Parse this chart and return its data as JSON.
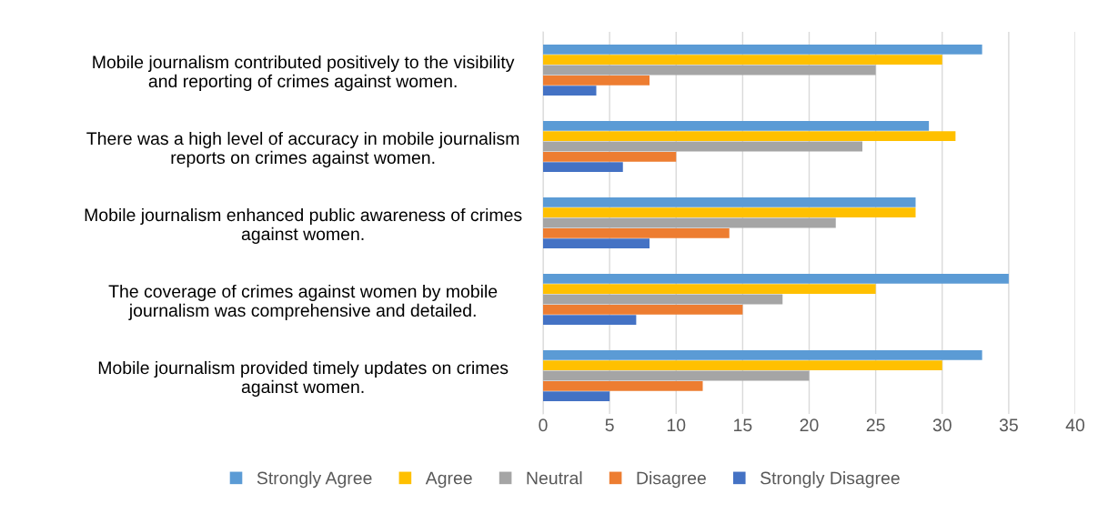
{
  "chart_data": {
    "type": "bar",
    "orientation": "horizontal",
    "categories": [
      "Mobile journalism contributed positively to the visibility\nand reporting of crimes against women.",
      "There was a high level of accuracy in mobile journalism\nreports on crimes against women.",
      "Mobile journalism enhanced public awareness of crimes\nagainst women.",
      "The coverage of crimes against women by mobile\njournalism was comprehensive and detailed.",
      "Mobile journalism provided timely updates on crimes\nagainst women."
    ],
    "series": [
      {
        "name": "Strongly Agree",
        "color": "#5b9bd5",
        "values": [
          33,
          29,
          28,
          35,
          33
        ]
      },
      {
        "name": "Agree",
        "color": "#ffc000",
        "values": [
          30,
          31,
          28,
          25,
          30
        ]
      },
      {
        "name": "Neutral",
        "color": "#a5a5a5",
        "values": [
          25,
          24,
          22,
          18,
          20
        ]
      },
      {
        "name": "Disagree",
        "color": "#ed7d31",
        "values": [
          8,
          10,
          14,
          15,
          12
        ]
      },
      {
        "name": "Strongly Disagree",
        "color": "#4472c4",
        "values": [
          4,
          6,
          8,
          7,
          5
        ]
      }
    ],
    "xlim": [
      0,
      40
    ],
    "xticks": [
      0,
      5,
      10,
      15,
      20,
      25,
      30,
      35,
      40
    ],
    "grid": "x",
    "legend": "bottom"
  }
}
